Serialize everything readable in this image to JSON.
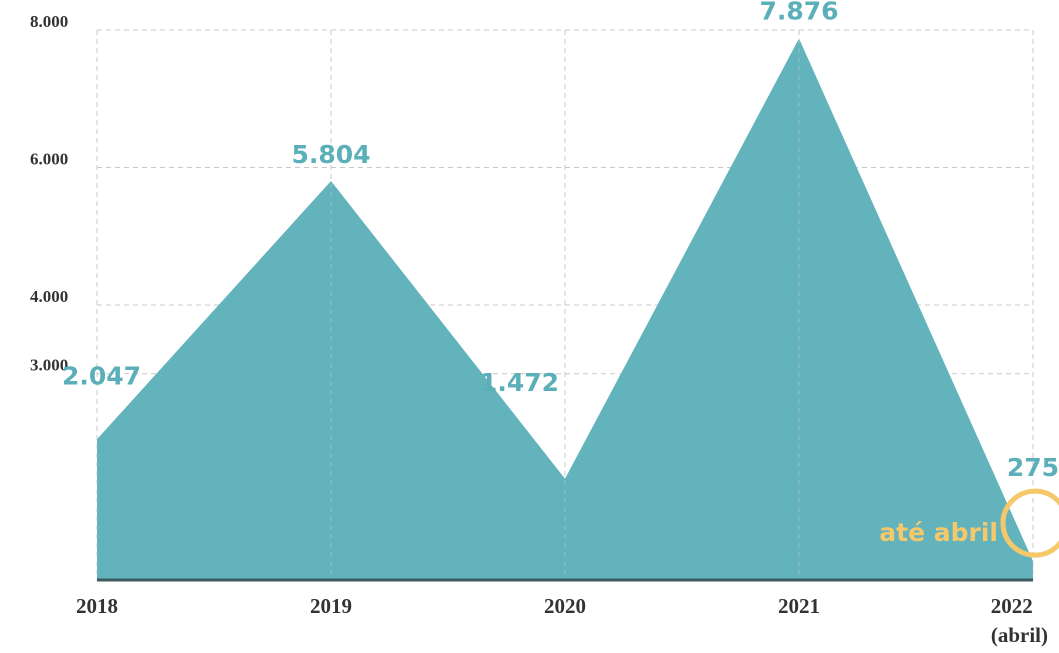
{
  "chart_data": {
    "type": "area",
    "categories": [
      "2018",
      "2019",
      "2020",
      "2021",
      "2022 (abril)"
    ],
    "values": [
      2047,
      5804,
      1472,
      7876,
      275
    ],
    "value_labels": [
      "2.047",
      "5.804",
      "1.472",
      "7.876",
      "275"
    ],
    "color": "#62b3bc",
    "label_color": "#5aafb8",
    "ylim": [
      0,
      8000
    ],
    "yticks": [
      {
        "value": 3000,
        "label": "3.000"
      },
      {
        "value": 4000,
        "label": "4.000"
      },
      {
        "value": 6000,
        "label": "6.000"
      },
      {
        "value": 8000,
        "label": "8.000"
      }
    ],
    "grid": true,
    "annotation": "até abril",
    "annotation_color": "#f5c86a"
  }
}
